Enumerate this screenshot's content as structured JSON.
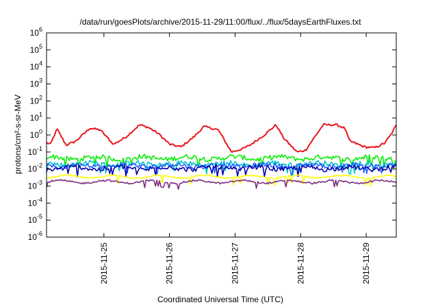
{
  "chart_data": {
    "type": "line",
    "title": "/data/run/goesPlots/archive/2015-11-29/11:00/flux/../flux/5daysEarthFluxes.txt",
    "xlabel": "Coordinated Universal Time (UTC)",
    "ylabel": "protons/cm²-s-sr-MeV",
    "yscale": "log",
    "ylim": [
      1e-06,
      1000000.0
    ],
    "xlim": [
      "2015-11-24 03:00",
      "2015-11-29 11:00"
    ],
    "x_ticks": [
      "2015-11-25",
      "2015-11-26",
      "2015-11-27",
      "2015-11-28",
      "2015-11-29"
    ],
    "y_tick_exponents": [
      -6,
      -5,
      -4,
      -3,
      -2,
      -1,
      0,
      1,
      2,
      3,
      4,
      5,
      6
    ],
    "grid": false,
    "legend": "none",
    "series": [
      {
        "color": "#e8141c",
        "base_exp": -0.45,
        "anchors": [
          [
            0,
            -0.45
          ],
          [
            0.06,
            -0.55
          ],
          [
            0.16,
            0.35
          ],
          [
            0.3,
            -0.6
          ],
          [
            0.45,
            -0.35
          ],
          [
            0.66,
            0.4
          ],
          [
            0.82,
            0.3
          ],
          [
            1.02,
            -0.55
          ],
          [
            1.2,
            -0.15
          ],
          [
            1.42,
            0.6
          ],
          [
            1.55,
            0.45
          ],
          [
            1.7,
            0.1
          ],
          [
            1.88,
            -0.55
          ],
          [
            2.05,
            -0.7
          ],
          [
            2.25,
            -0.1
          ],
          [
            2.4,
            0.5
          ],
          [
            2.62,
            0.3
          ],
          [
            2.82,
            -1.0
          ],
          [
            3.0,
            -0.8
          ],
          [
            3.1,
            -0.6
          ],
          [
            3.32,
            0.0
          ],
          [
            3.5,
            0.6
          ],
          [
            3.62,
            -0.2
          ],
          [
            3.82,
            -1.0
          ],
          [
            3.95,
            -0.9
          ],
          [
            4.02,
            -0.5
          ],
          [
            4.22,
            0.6
          ],
          [
            4.42,
            0.6
          ],
          [
            4.55,
            0.4
          ],
          [
            4.62,
            -0.35
          ],
          [
            4.85,
            -0.7
          ],
          [
            5.0,
            -0.75
          ],
          [
            5.15,
            -0.5
          ],
          [
            5.25,
            0.0
          ],
          [
            5.33,
            0.55
          ]
        ]
      },
      {
        "color": "#00ee00",
        "base_exp": -1.35
      },
      {
        "color": "#00c8c8",
        "base_exp": -1.7
      },
      {
        "color": "#2060ff",
        "base_exp": -1.8
      },
      {
        "color": "#0000b0",
        "base_exp": -1.95
      },
      {
        "color": "#ffff00",
        "base_exp": -2.45
      },
      {
        "color": "#7b2c7b",
        "base_exp": -2.75
      }
    ]
  }
}
